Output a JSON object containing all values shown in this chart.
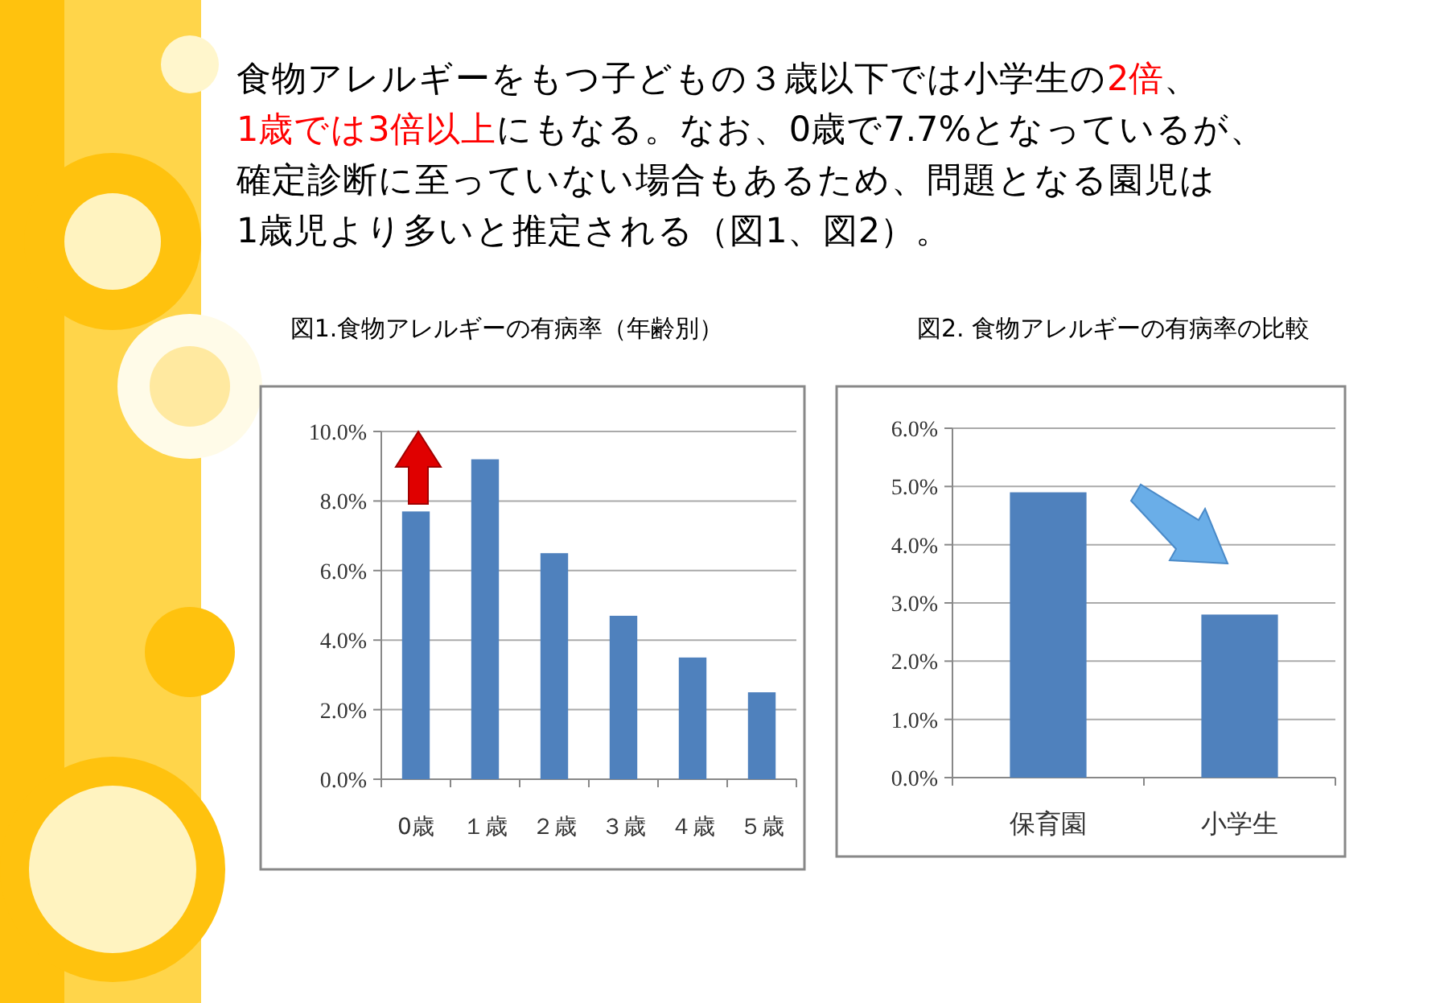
{
  "chart_data": [
    {
      "type": "bar",
      "title": "図1.食物アレルギーの有病率（年齢別）",
      "categories": [
        "0歳",
        "１歳",
        "２歳",
        "３歳",
        "４歳",
        "５歳"
      ],
      "values": [
        7.7,
        9.2,
        6.5,
        4.7,
        3.5,
        2.5
      ],
      "color": "#4f81bd",
      "ylim": [
        0,
        10
      ],
      "yticks": [
        {
          "value": 0,
          "label": "0.0%"
        },
        {
          "value": 2,
          "label": "2.0%"
        },
        {
          "value": 4,
          "label": "4.0%"
        },
        {
          "value": 6,
          "label": "6.0%"
        },
        {
          "value": 8,
          "label": "8.0%"
        },
        {
          "value": 10,
          "label": "10.0%"
        }
      ],
      "grid": "y",
      "annotations": [
        "食物アレルギーをもつ子どもの３歳以下では小学生の",
        "2倍",
        "、",
        "1歳では3倍以上",
        "にもなる。なお、0歳で7.7%となっているが、",
        "確定診断に至っていない場合もあるため、問題となる園児は",
        "1歳児より多いと推定される（図1、図2）。"
      ]
    },
    {
      "type": "bar",
      "title": "図2. 食物アレルギーの有病率の比較",
      "categories": [
        "保育園",
        "小学生"
      ],
      "values": [
        4.9,
        2.8
      ],
      "color": "#4f81bd",
      "ylim": [
        0,
        6
      ],
      "yticks": [
        {
          "value": 0,
          "label": "0.0%"
        },
        {
          "value": 1,
          "label": "1.0%"
        },
        {
          "value": 2,
          "label": "2.0%"
        },
        {
          "value": 3,
          "label": "3.0%"
        },
        {
          "value": 4,
          "label": "4.0%"
        },
        {
          "value": 5,
          "label": "5.0%"
        },
        {
          "value": 6,
          "label": "6.0%"
        }
      ],
      "grid": "y"
    }
  ]
}
